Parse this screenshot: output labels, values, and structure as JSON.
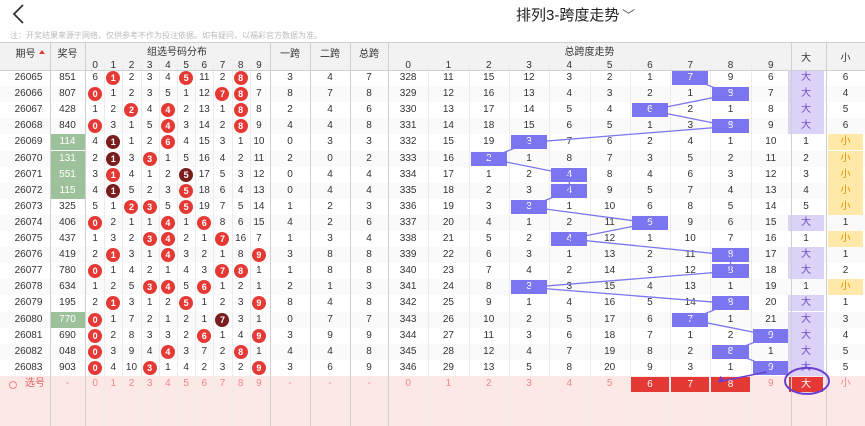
{
  "header": {
    "title": "排列3-跨度走势"
  },
  "notice": "注：开奖结果来源于网络，仅供参考不作为投注依据。如有疑问，以福彩官方数据为准。",
  "columns": {
    "period": "期号",
    "prize": "奖号",
    "distribution": "组选号码分布",
    "span1": "一跨",
    "span2": "二跨",
    "total_span": "总跨",
    "trend": "总跨度走势",
    "big": "大",
    "small": "小",
    "dist_digits": [
      "0",
      "1",
      "2",
      "3",
      "4",
      "5",
      "6",
      "7",
      "8",
      "9"
    ],
    "trend_digits": [
      "0",
      "1",
      "2",
      "3",
      "4",
      "5",
      "6",
      "7",
      "8",
      "9"
    ]
  },
  "colors": {
    "ball_red": "#e53935",
    "ball_dark": "#7a1d1d",
    "accent_blue": "#7b76ef",
    "big_purple": "#dcd1f7",
    "small_yellow": "#ffe8a8",
    "green_prize": "#9dc29b",
    "sel_row": "#fde8e8",
    "sel_red": "#e53935"
  },
  "rows": [
    {
      "period": "26065",
      "prize": "851",
      "dist": [
        "6",
        "1",
        "2",
        "3",
        "4",
        "5",
        "11",
        "2",
        "8",
        "6"
      ],
      "hits": [
        1,
        5,
        8
      ],
      "dark": [],
      "s1": "3",
      "s2": "4",
      "ts": "7",
      "trend": [
        "328",
        "11",
        "15",
        "12",
        "3",
        "2",
        "1",
        "7",
        "9",
        "6"
      ],
      "hit": 7,
      "bs": [
        "大",
        "6"
      ],
      "big": true
    },
    {
      "period": "26066",
      "prize": "807",
      "dist": [
        "0",
        "1",
        "2",
        "3",
        "5",
        "1",
        "12",
        "7",
        "8",
        "7"
      ],
      "hits": [
        0,
        7,
        8
      ],
      "dark": [],
      "s1": "8",
      "s2": "7",
      "ts": "8",
      "trend": [
        "329",
        "12",
        "16",
        "13",
        "4",
        "3",
        "2",
        "1",
        "8",
        "7"
      ],
      "hit": 8,
      "bs": [
        "大",
        "4"
      ],
      "big": true
    },
    {
      "period": "26067",
      "prize": "428",
      "dist": [
        "1",
        "2",
        "2",
        "4",
        "4",
        "2",
        "13",
        "1",
        "8",
        "8"
      ],
      "hits": [
        2,
        4,
        8
      ],
      "dark": [],
      "s1": "2",
      "s2": "4",
      "ts": "6",
      "trend": [
        "330",
        "13",
        "17",
        "14",
        "5",
        "4",
        "6",
        "2",
        "1",
        "8"
      ],
      "hit": 6,
      "bs": [
        "大",
        "5"
      ],
      "big": true
    },
    {
      "period": "26068",
      "prize": "840",
      "dist": [
        "0",
        "3",
        "1",
        "5",
        "4",
        "3",
        "14",
        "2",
        "8",
        "9"
      ],
      "hits": [
        0,
        4,
        8
      ],
      "dark": [],
      "s1": "4",
      "s2": "4",
      "ts": "8",
      "trend": [
        "331",
        "14",
        "18",
        "15",
        "6",
        "5",
        "1",
        "3",
        "8",
        "9"
      ],
      "hit": 8,
      "bs": [
        "大",
        "6"
      ],
      "big": true
    },
    {
      "period": "26069",
      "prize": "114",
      "dist": [
        "4",
        "1",
        "1",
        "2",
        "6",
        "4",
        "15",
        "3",
        "1",
        "10"
      ],
      "hits": [
        4
      ],
      "dark": [
        1
      ],
      "s1": "0",
      "s2": "3",
      "ts": "3",
      "trend": [
        "332",
        "15",
        "19",
        "3",
        "7",
        "6",
        "2",
        "4",
        "1",
        "10"
      ],
      "hit": 3,
      "bs": [
        "1",
        "小"
      ],
      "big": false,
      "green": true
    },
    {
      "period": "26070",
      "prize": "131",
      "dist": [
        "2",
        "1",
        "3",
        "3",
        "1",
        "5",
        "16",
        "4",
        "2",
        "11"
      ],
      "hits": [
        3
      ],
      "dark": [
        1
      ],
      "s1": "2",
      "s2": "0",
      "ts": "2",
      "trend": [
        "333",
        "16",
        "2",
        "1",
        "8",
        "7",
        "3",
        "5",
        "2",
        "11"
      ],
      "hit": 2,
      "bs": [
        "2",
        "小"
      ],
      "big": false,
      "green": true
    },
    {
      "period": "26071",
      "prize": "551",
      "dist": [
        "3",
        "1",
        "4",
        "1",
        "2",
        "5",
        "17",
        "5",
        "3",
        "12"
      ],
      "hits": [
        1
      ],
      "dark": [
        5
      ],
      "s1": "0",
      "s2": "4",
      "ts": "4",
      "trend": [
        "334",
        "17",
        "1",
        "2",
        "4",
        "8",
        "4",
        "6",
        "3",
        "12"
      ],
      "hit": 4,
      "bs": [
        "3",
        "小"
      ],
      "big": false,
      "green": true
    },
    {
      "period": "26072",
      "prize": "115",
      "dist": [
        "4",
        "1",
        "5",
        "2",
        "3",
        "5",
        "18",
        "6",
        "4",
        "13"
      ],
      "hits": [
        5
      ],
      "dark": [
        1
      ],
      "s1": "0",
      "s2": "4",
      "ts": "4",
      "trend": [
        "335",
        "18",
        "2",
        "3",
        "4",
        "9",
        "5",
        "7",
        "4",
        "13"
      ],
      "hit": 4,
      "bs": [
        "4",
        "小"
      ],
      "big": false,
      "green": true
    },
    {
      "period": "26073",
      "prize": "325",
      "dist": [
        "5",
        "1",
        "2",
        "3",
        "5",
        "5",
        "19",
        "7",
        "5",
        "14"
      ],
      "hits": [
        2,
        3,
        5
      ],
      "dark": [],
      "s1": "1",
      "s2": "2",
      "ts": "3",
      "trend": [
        "336",
        "19",
        "3",
        "3",
        "1",
        "10",
        "6",
        "8",
        "5",
        "14"
      ],
      "hit": 3,
      "bs": [
        "5",
        "小"
      ],
      "big": false
    },
    {
      "period": "26074",
      "prize": "406",
      "dist": [
        "0",
        "2",
        "1",
        "1",
        "4",
        "1",
        "6",
        "8",
        "6",
        "15"
      ],
      "hits": [
        0,
        4,
        6
      ],
      "dark": [],
      "s1": "4",
      "s2": "2",
      "ts": "6",
      "trend": [
        "337",
        "20",
        "4",
        "1",
        "2",
        "11",
        "6",
        "9",
        "6",
        "15"
      ],
      "hit": 6,
      "bs": [
        "大",
        "1"
      ],
      "big": true
    },
    {
      "period": "26075",
      "prize": "437",
      "dist": [
        "1",
        "3",
        "2",
        "3",
        "4",
        "2",
        "1",
        "7",
        "16",
        "7"
      ],
      "hits": [
        3,
        4,
        7
      ],
      "dark": [],
      "s1": "1",
      "s2": "3",
      "ts": "4",
      "trend": [
        "338",
        "21",
        "5",
        "2",
        "4",
        "12",
        "1",
        "10",
        "7",
        "16"
      ],
      "hit": 4,
      "bs": [
        "1",
        "小"
      ],
      "big": false
    },
    {
      "period": "26076",
      "prize": "419",
      "dist": [
        "2",
        "1",
        "3",
        "1",
        "4",
        "3",
        "2",
        "1",
        "8",
        "9"
      ],
      "hits": [
        1,
        4,
        9
      ],
      "dark": [],
      "s1": "3",
      "s2": "8",
      "ts": "8",
      "trend": [
        "339",
        "22",
        "6",
        "3",
        "1",
        "13",
        "2",
        "11",
        "8",
        "17"
      ],
      "hit": 8,
      "bs": [
        "大",
        "1"
      ],
      "big": true
    },
    {
      "period": "26077",
      "prize": "780",
      "dist": [
        "0",
        "1",
        "4",
        "2",
        "1",
        "4",
        "3",
        "7",
        "8",
        "1"
      ],
      "hits": [
        0,
        7,
        8
      ],
      "dark": [],
      "s1": "1",
      "s2": "8",
      "ts": "8",
      "trend": [
        "340",
        "23",
        "7",
        "4",
        "2",
        "14",
        "3",
        "12",
        "8",
        "18"
      ],
      "hit": 8,
      "bs": [
        "大",
        "2"
      ],
      "big": true
    },
    {
      "period": "26078",
      "prize": "634",
      "dist": [
        "1",
        "2",
        "5",
        "3",
        "4",
        "5",
        "6",
        "1",
        "2",
        "1"
      ],
      "hits": [
        3,
        4,
        6
      ],
      "dark": [],
      "s1": "2",
      "s2": "1",
      "ts": "3",
      "trend": [
        "341",
        "24",
        "8",
        "3",
        "3",
        "15",
        "4",
        "13",
        "1",
        "19"
      ],
      "hit": 3,
      "bs": [
        "1",
        "小"
      ],
      "big": false
    },
    {
      "period": "26079",
      "prize": "195",
      "dist": [
        "2",
        "1",
        "3",
        "1",
        "2",
        "5",
        "1",
        "2",
        "3",
        "9"
      ],
      "hits": [
        1,
        5,
        9
      ],
      "dark": [],
      "s1": "8",
      "s2": "4",
      "ts": "8",
      "trend": [
        "342",
        "25",
        "9",
        "1",
        "4",
        "16",
        "5",
        "14",
        "8",
        "20"
      ],
      "hit": 8,
      "bs": [
        "大",
        "1"
      ],
      "big": true
    },
    {
      "period": "26080",
      "prize": "770",
      "dist": [
        "0",
        "1",
        "7",
        "2",
        "1",
        "2",
        "1",
        "7",
        "3",
        "1"
      ],
      "hits": [
        0
      ],
      "dark": [
        7
      ],
      "s1": "0",
      "s2": "7",
      "ts": "7",
      "trend": [
        "343",
        "26",
        "10",
        "2",
        "5",
        "17",
        "6",
        "7",
        "1",
        "21"
      ],
      "hit": 7,
      "bs": [
        "大",
        "3"
      ],
      "big": true,
      "green": true
    },
    {
      "period": "26081",
      "prize": "690",
      "dist": [
        "0",
        "2",
        "8",
        "3",
        "3",
        "2",
        "6",
        "1",
        "4",
        "9"
      ],
      "hits": [
        0,
        6,
        9
      ],
      "dark": [],
      "s1": "3",
      "s2": "9",
      "ts": "9",
      "trend": [
        "344",
        "27",
        "11",
        "3",
        "6",
        "18",
        "7",
        "1",
        "2",
        "9"
      ],
      "hit": 9,
      "bs": [
        "大",
        "4"
      ],
      "big": true
    },
    {
      "period": "26082",
      "prize": "048",
      "dist": [
        "0",
        "3",
        "9",
        "4",
        "4",
        "3",
        "7",
        "2",
        "8",
        "1"
      ],
      "hits": [
        0,
        4,
        8
      ],
      "dark": [],
      "s1": "4",
      "s2": "4",
      "ts": "8",
      "trend": [
        "345",
        "28",
        "12",
        "4",
        "7",
        "19",
        "8",
        "2",
        "8",
        "1"
      ],
      "hit": 8,
      "bs": [
        "大",
        "5"
      ],
      "big": true
    },
    {
      "period": "26083",
      "prize": "903",
      "dist": [
        "0",
        "4",
        "10",
        "3",
        "1",
        "4",
        "2",
        "3",
        "2",
        "9"
      ],
      "hits": [
        0,
        3,
        9
      ],
      "dark": [],
      "s1": "3",
      "s2": "6",
      "ts": "9",
      "trend": [
        "346",
        "29",
        "13",
        "5",
        "8",
        "20",
        "9",
        "3",
        "1",
        "9"
      ],
      "hit": 9,
      "bs": [
        "大",
        "5"
      ],
      "big": true
    }
  ],
  "select_row": {
    "label": "选号",
    "dash": "-",
    "dist": [
      "0",
      "1",
      "2",
      "3",
      "4",
      "5",
      "6",
      "7",
      "8",
      "9"
    ],
    "trend": [
      "0",
      "1",
      "2",
      "3",
      "4",
      "5",
      "6",
      "7",
      "8",
      "9"
    ],
    "selected": [
      6,
      7,
      8
    ],
    "big": "大",
    "small": "小"
  }
}
